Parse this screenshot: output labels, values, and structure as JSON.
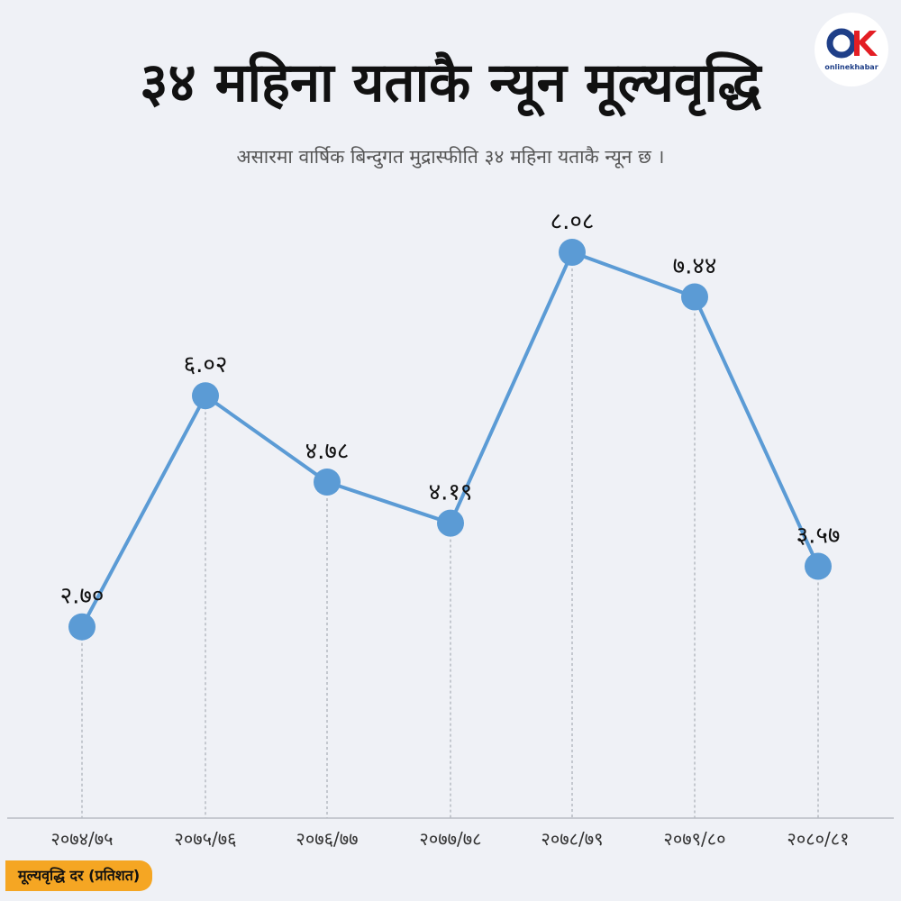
{
  "header": {
    "title": "३४ महिना यताकै न्यून मूल्यवृद्धि",
    "subtitle": "असारमा वार्षिक बिन्दुगत मुद्रास्फीति ३४ महिना यताकै न्यून छ ।"
  },
  "logo": {
    "brand": "onlinekhabar"
  },
  "colors": {
    "line": "#5b9bd5",
    "accent": "#f5a623",
    "logo_red": "#e31e24",
    "logo_blue": "#1f3f88"
  },
  "chart_data": {
    "type": "line",
    "categories": [
      "२०७४/७५",
      "२०७५/७६",
      "२०७६/७७",
      "२०७७/७८",
      "२०७८/७९",
      "२०७९/८०",
      "२०८०/८१"
    ],
    "values": [
      2.7,
      6.02,
      4.78,
      4.19,
      8.08,
      7.44,
      3.57
    ],
    "value_labels": [
      "२.७०",
      "६.०२",
      "४.७८",
      "४.१९",
      "८.०८",
      "७.४४",
      "३.५७"
    ],
    "ylabel": "मूल्यवृद्धि दर (प्रतिशत)",
    "ylim": [
      0,
      10
    ],
    "grid": false,
    "drop_lines": true
  }
}
